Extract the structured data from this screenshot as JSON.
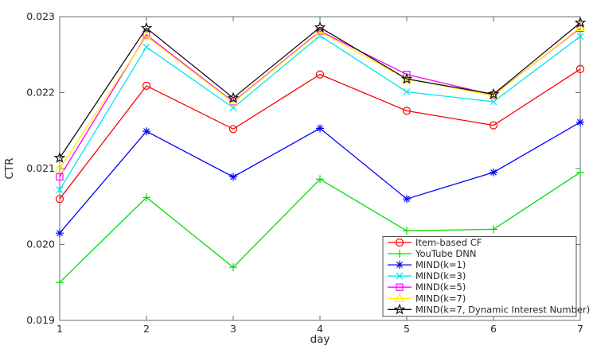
{
  "figure": {
    "background": "#ffffff",
    "frame_color": "#6e6e6e",
    "text_color": "#262626",
    "legend_border_color": "#555555"
  },
  "chart_data": {
    "type": "line",
    "title": "",
    "xlabel": "day",
    "ylabel": "CTR",
    "xlim": [
      1,
      7
    ],
    "ylim": [
      0.019,
      0.023
    ],
    "x_ticks": [
      "1",
      "2",
      "3",
      "4",
      "5",
      "6",
      "7"
    ],
    "y_ticks": [
      "0.019",
      "0.020",
      "0.021",
      "0.022",
      "0.023"
    ],
    "grid": false,
    "legend_position": "lower-right",
    "x": [
      1,
      2,
      3,
      4,
      5,
      6,
      7
    ],
    "series": [
      {
        "name": "Item-based CF",
        "color": "#ff0000",
        "marker": "circle",
        "values": [
          0.0206,
          0.02209,
          0.02152,
          0.02224,
          0.02176,
          0.02157,
          0.02231
        ]
      },
      {
        "name": "YouTube DNN",
        "color": "#00dd00",
        "marker": "plus",
        "values": [
          0.0195,
          0.02062,
          0.0197,
          0.02086,
          0.02018,
          0.0202,
          0.02095
        ]
      },
      {
        "name": "MIND(k=1)",
        "color": "#0000ff",
        "marker": "asterisk",
        "values": [
          0.02015,
          0.02149,
          0.02089,
          0.02153,
          0.0206,
          0.02095,
          0.02161
        ]
      },
      {
        "name": "MIND(k=3)",
        "color": "#00e5ee",
        "marker": "x",
        "values": [
          0.02072,
          0.0226,
          0.0218,
          0.02275,
          0.02201,
          0.02188,
          0.02274
        ]
      },
      {
        "name": "MIND(k=5)",
        "color": "#ff00ff",
        "marker": "square",
        "values": [
          0.02089,
          0.02276,
          0.02188,
          0.02281,
          0.02224,
          0.02197,
          0.02285
        ]
      },
      {
        "name": "MIND(k=7)",
        "color": "#ffee00",
        "marker": "triangle-up",
        "values": [
          0.021,
          0.02274,
          0.02187,
          0.0228,
          0.02218,
          0.02196,
          0.02286
        ]
      },
      {
        "name": "MIND(k=7, Dynamic Interest Number)",
        "color": "#111111",
        "marker": "star",
        "values": [
          0.02114,
          0.02285,
          0.02193,
          0.02286,
          0.02218,
          0.02198,
          0.02292
        ]
      }
    ]
  }
}
